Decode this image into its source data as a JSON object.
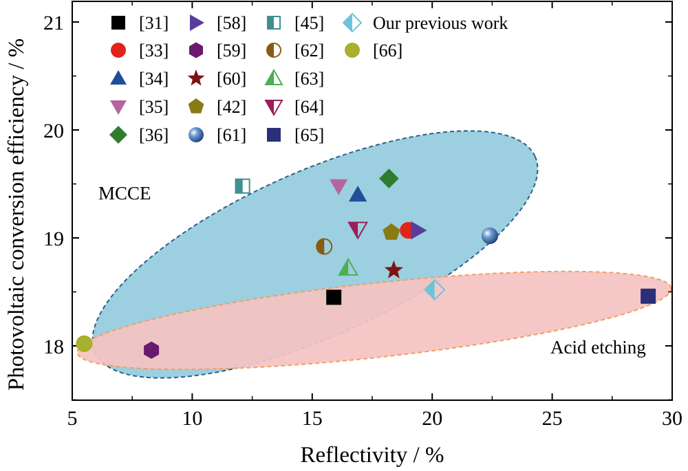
{
  "chart_data": {
    "type": "scatter",
    "xlabel": "Reflectivity / %",
    "ylabel": "Photovoltaic conversion efficiency / %",
    "xlim": [
      5,
      30
    ],
    "ylim": [
      17.5,
      21.2
    ],
    "xticks": [
      "5",
      "10",
      "15",
      "20",
      "25",
      "30"
    ],
    "yticks": [
      "18",
      "19",
      "20",
      "21"
    ],
    "grid": false,
    "legend_position": "top-left",
    "regions": [
      {
        "label": "MCCE",
        "color": "#9ccfe0",
        "edge": "#2c5f86"
      },
      {
        "label": "Acid etching",
        "color": "#f5c3c3",
        "edge": "#f0a060"
      }
    ],
    "series": [
      {
        "name": "[31]",
        "marker": "square",
        "color": "#000000",
        "x": 15.9,
        "y": 18.45
      },
      {
        "name": "[33]",
        "marker": "circle",
        "color": "#e2231a",
        "x": 19.0,
        "y": 19.07
      },
      {
        "name": "[34]",
        "marker": "triangle-up",
        "color": "#1f4e9a",
        "x": 16.9,
        "y": 19.4
      },
      {
        "name": "[35]",
        "marker": "triangle-down",
        "color": "#b5649e",
        "x": 16.1,
        "y": 19.48
      },
      {
        "name": "[36]",
        "marker": "diamond",
        "color": "#2e7d2e",
        "x": 18.2,
        "y": 19.55
      },
      {
        "name": "[58]",
        "marker": "triangle-right",
        "color": "#5a3d9a",
        "x": 19.4,
        "y": 19.07
      },
      {
        "name": "[59]",
        "marker": "hexagon",
        "color": "#6a1a6e",
        "x": 8.3,
        "y": 17.96
      },
      {
        "name": "[60]",
        "marker": "star",
        "color": "#7a1515",
        "x": 18.4,
        "y": 18.7
      },
      {
        "name": "[42]",
        "marker": "pentagon",
        "color": "#8a7a14",
        "x": 18.3,
        "y": 19.05
      },
      {
        "name": "[61]",
        "marker": "sphere",
        "color": "#2a5c9a",
        "x": 22.4,
        "y": 19.02
      },
      {
        "name": "[45]",
        "marker": "half-square",
        "color": "#3f8f93",
        "x": 12.1,
        "y": 19.48
      },
      {
        "name": "[62]",
        "marker": "half-circle",
        "color": "#8a5a14",
        "x": 15.5,
        "y": 18.92
      },
      {
        "name": "[63]",
        "marker": "half-triangle-up",
        "color": "#4caf50",
        "x": 16.5,
        "y": 18.72
      },
      {
        "name": "[64]",
        "marker": "half-triangle-down",
        "color": "#9a1e5a",
        "x": 16.9,
        "y": 19.08
      },
      {
        "name": "[65]",
        "marker": "square",
        "color": "#2a2f7a",
        "x": 29.0,
        "y": 18.46
      },
      {
        "name": "Our previous work",
        "marker": "half-diamond",
        "color": "#6fc3d8",
        "x": 20.1,
        "y": 18.52
      },
      {
        "name": "[66]",
        "marker": "circle",
        "color": "#a8b02c",
        "x": 5.5,
        "y": 18.02
      }
    ]
  }
}
